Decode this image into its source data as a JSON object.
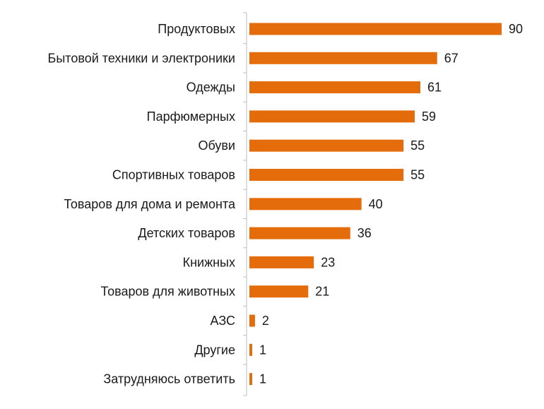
{
  "chart_data": {
    "type": "bar",
    "orientation": "horizontal",
    "categories": [
      "Продуктовых",
      "Бытовой техники и электроники",
      "Одежды",
      "Парфюмерных",
      "Обуви",
      "Спортивных товаров",
      "Товаров для дома и ремонта",
      "Детских товаров",
      "Книжных",
      "Товаров для животных",
      "АЗС",
      "Другие",
      "Затрудняюсь ответить"
    ],
    "values": [
      90,
      67,
      61,
      59,
      55,
      55,
      40,
      36,
      23,
      21,
      2,
      1,
      1
    ],
    "value_labels": [
      "90",
      "67",
      "61",
      "59",
      "55",
      "55",
      "40",
      "36",
      "23",
      "21",
      "2",
      "1",
      "1"
    ],
    "xlim": [
      0,
      90
    ],
    "grid": false,
    "bar_color": "#E46C0A",
    "axis_color": "#BFBFBF"
  }
}
